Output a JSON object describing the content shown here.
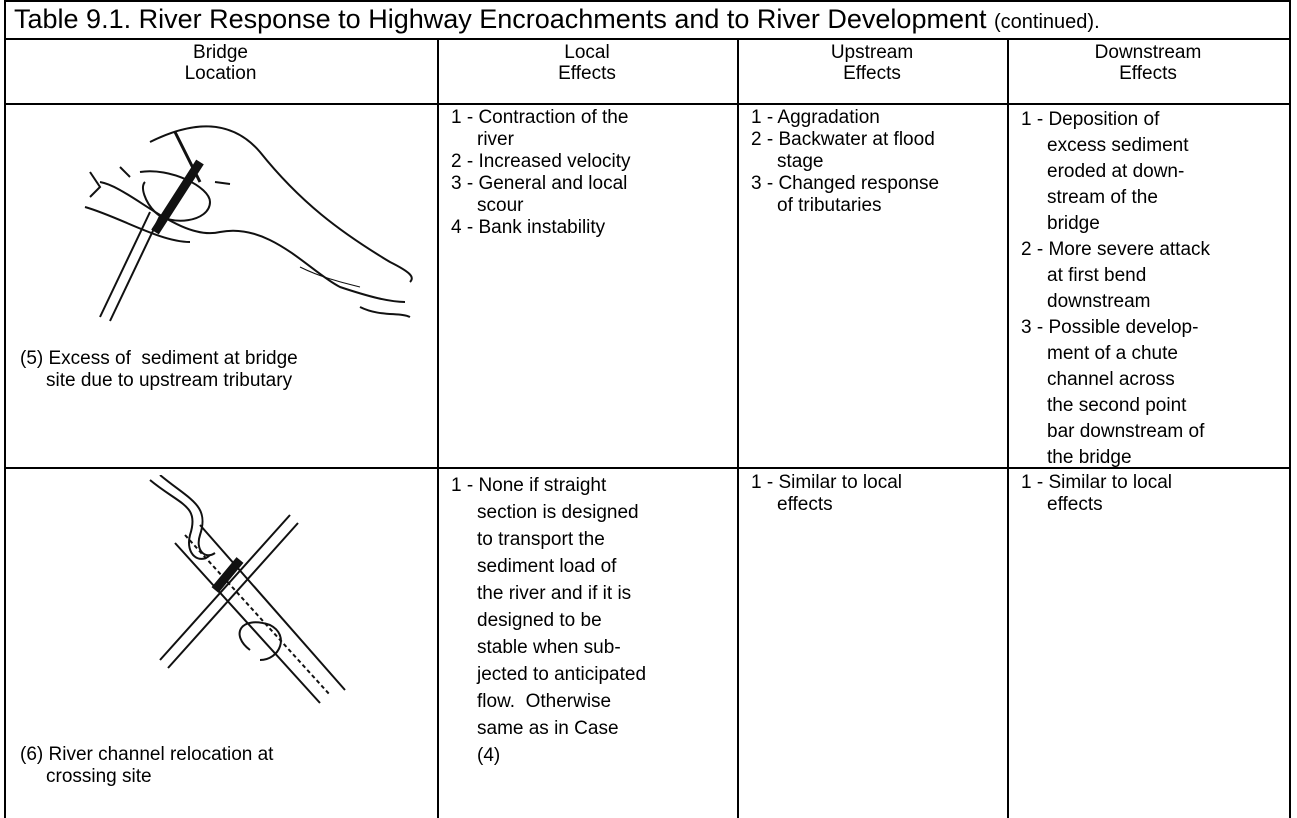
{
  "table": {
    "title": "Table 9.1.  River Response to Highway Encroachments and to River Development",
    "title_note": "(continued).",
    "header": [
      {
        "lines": [
          "Bridge",
          "Location"
        ]
      },
      {
        "lines": [
          "Local",
          "Effects"
        ]
      },
      {
        "lines": [
          "Upstream",
          "Effects"
        ]
      },
      {
        "lines": [
          "Downstream",
          "Effects"
        ]
      }
    ],
    "rows": [
      {
        "cells": [
          {
            "lines": [
              "(5) Excess of  sediment at bridge",
              "site due to upstream tributary"
            ]
          },
          {
            "lines": [
              "1 - Contraction of the",
              "river",
              "2 - Increased velocity",
              "3 - General and local",
              "scour",
              "4 - Bank instability"
            ]
          },
          {
            "lines": [
              "1 - Aggradation",
              "2 - Backwater at flood",
              "stage",
              "3 - Changed response",
              "of tributaries"
            ]
          },
          {
            "lines": [
              "1 - Deposition of",
              "excess sediment",
              "eroded at down-",
              "stream of the",
              "bridge",
              "2 - More severe attack",
              "at first bend",
              "downstream",
              "3 - Possible develop-",
              "ment of a chute",
              "channel across",
              "the second point",
              "bar downstream of",
              "the bridge"
            ]
          }
        ]
      },
      {
        "cells": [
          {
            "lines": [
              "(6) River channel relocation at",
              "crossing site"
            ]
          },
          {
            "lines": [
              "1 - None if straight",
              "section is designed",
              "to transport the",
              "sediment load of",
              "the river and if it is",
              "designed to be",
              "stable when sub-",
              "jected to anticipated",
              "flow.  Otherwise",
              "same as in Case",
              "(4)"
            ]
          },
          {
            "lines": [
              "1 - Similar to local",
              "effects"
            ]
          },
          {
            "lines": [
              "1 - Similar to local",
              "effects"
            ]
          }
        ]
      }
    ]
  }
}
